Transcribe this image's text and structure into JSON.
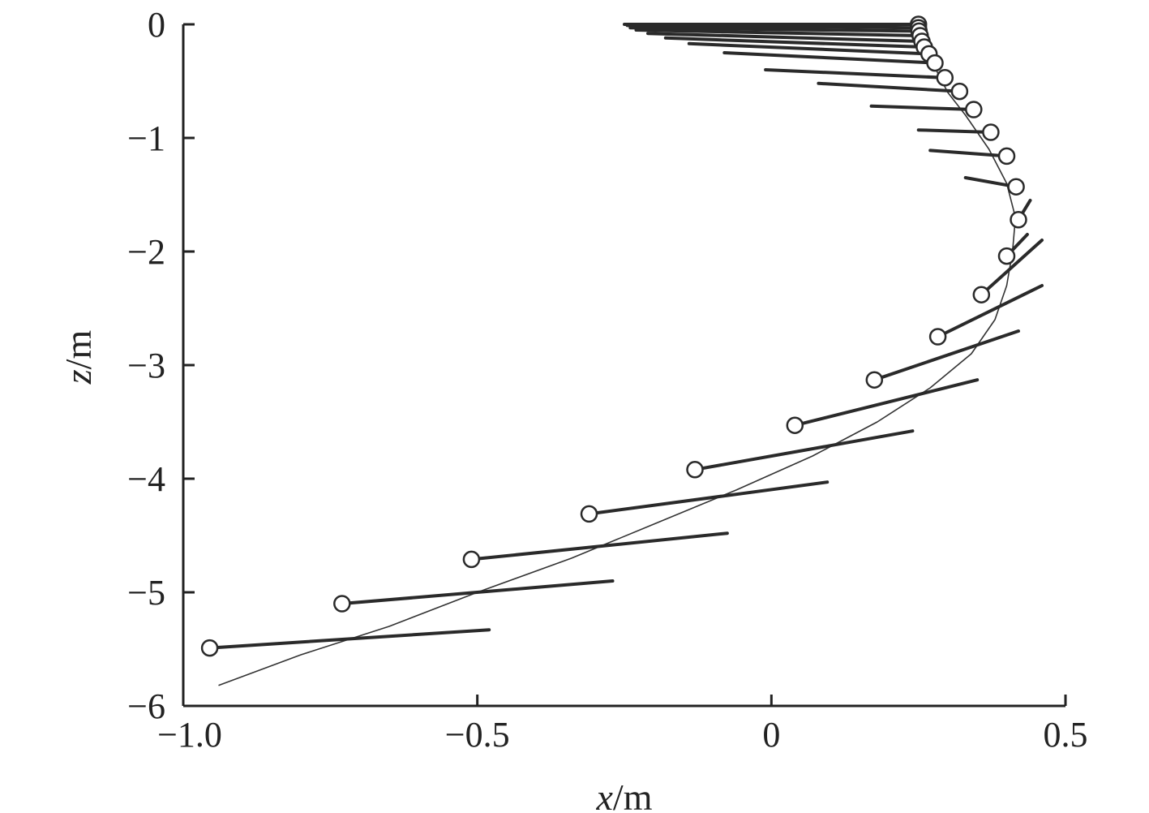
{
  "chart_data": {
    "type": "line",
    "xlabel": "x/m",
    "ylabel": "z/m",
    "xlim": [
      -1.0,
      0.5
    ],
    "ylim": [
      -6,
      0
    ],
    "x_ticks": [
      -1.0,
      -0.5,
      0,
      0.5
    ],
    "x_tick_labels": [
      "−1.0",
      "−0.5",
      "0",
      "0.5"
    ],
    "y_ticks": [
      0,
      -1,
      -2,
      -3,
      -4,
      -5,
      -6
    ],
    "y_tick_labels": [
      "0",
      "−1",
      "−2",
      "−3",
      "−4",
      "−5",
      "−6"
    ],
    "grid": false,
    "legend": "none",
    "colors": {
      "snapshot": "#2a2a2a",
      "path": "#333333",
      "marker_edge": "#2a2a2a",
      "axis": "#222222"
    },
    "trajectory": {
      "x": [
        0.25,
        0.26,
        0.28,
        0.3,
        0.33,
        0.37,
        0.4,
        0.415,
        0.41,
        0.4,
        0.38,
        0.34,
        0.27,
        0.18,
        0.07,
        -0.06,
        -0.2,
        -0.34,
        -0.5,
        -0.65,
        -0.8,
        -0.94
      ],
      "z": [
        0,
        -0.2,
        -0.4,
        -0.6,
        -0.8,
        -1.1,
        -1.4,
        -1.7,
        -2.0,
        -2.3,
        -2.6,
        -2.9,
        -3.2,
        -3.5,
        -3.8,
        -4.1,
        -4.4,
        -4.7,
        -5.0,
        -5.3,
        -5.55,
        -5.82
      ]
    },
    "series": [
      {
        "x": [
          -0.25,
          0.25
        ],
        "z": [
          0.0,
          0.0
        ],
        "marker": [
          0.25,
          0.0
        ]
      },
      {
        "x": [
          -0.245,
          0.25
        ],
        "z": [
          -0.01,
          -0.03
        ],
        "marker": [
          0.25,
          -0.03
        ]
      },
      {
        "x": [
          -0.24,
          0.251
        ],
        "z": [
          -0.03,
          -0.06
        ],
        "marker": [
          0.251,
          -0.06
        ]
      },
      {
        "x": [
          -0.23,
          0.253
        ],
        "z": [
          -0.05,
          -0.1
        ],
        "marker": [
          0.253,
          -0.1
        ]
      },
      {
        "x": [
          -0.21,
          0.256
        ],
        "z": [
          -0.08,
          -0.15
        ],
        "marker": [
          0.256,
          -0.15
        ]
      },
      {
        "x": [
          -0.18,
          0.26
        ],
        "z": [
          -0.12,
          -0.2
        ],
        "marker": [
          0.26,
          -0.2
        ]
      },
      {
        "x": [
          -0.14,
          0.268
        ],
        "z": [
          -0.17,
          -0.26
        ],
        "marker": [
          0.268,
          -0.26
        ]
      },
      {
        "x": [
          -0.08,
          0.278
        ],
        "z": [
          -0.25,
          -0.34
        ],
        "marker": [
          0.278,
          -0.34
        ]
      },
      {
        "x": [
          -0.01,
          0.295
        ],
        "z": [
          -0.4,
          -0.47
        ],
        "marker": [
          0.295,
          -0.47
        ]
      },
      {
        "x": [
          0.08,
          0.32
        ],
        "z": [
          -0.52,
          -0.59
        ],
        "marker": [
          0.32,
          -0.59
        ]
      },
      {
        "x": [
          0.17,
          0.344
        ],
        "z": [
          -0.72,
          -0.75
        ],
        "marker": [
          0.344,
          -0.75
        ]
      },
      {
        "x": [
          0.25,
          0.373
        ],
        "z": [
          -0.93,
          -0.95
        ],
        "marker": [
          0.373,
          -0.95
        ]
      },
      {
        "x": [
          0.27,
          0.4
        ],
        "z": [
          -1.11,
          -1.16
        ],
        "marker": [
          0.4,
          -1.16
        ]
      },
      {
        "x": [
          0.33,
          0.416
        ],
        "z": [
          -1.35,
          -1.43
        ],
        "marker": [
          0.416,
          -1.43
        ]
      },
      {
        "x": [
          0.44,
          0.42
        ],
        "z": [
          -1.55,
          -1.72
        ],
        "marker": [
          0.42,
          -1.72
        ]
      },
      {
        "x": [
          0.435,
          0.4
        ],
        "z": [
          -1.85,
          -2.04
        ],
        "marker": [
          0.4,
          -2.04
        ]
      },
      {
        "x": [
          0.46,
          0.357
        ],
        "z": [
          -1.9,
          -2.38
        ],
        "marker": [
          0.357,
          -2.38
        ]
      },
      {
        "x": [
          0.46,
          0.283
        ],
        "z": [
          -2.3,
          -2.75
        ],
        "marker": [
          0.283,
          -2.75
        ]
      },
      {
        "x": [
          0.42,
          0.175
        ],
        "z": [
          -2.7,
          -3.13
        ],
        "marker": [
          0.175,
          -3.13
        ]
      },
      {
        "x": [
          0.35,
          0.04
        ],
        "z": [
          -3.13,
          -3.53
        ],
        "marker": [
          0.04,
          -3.53
        ]
      },
      {
        "x": [
          0.24,
          -0.13
        ],
        "z": [
          -3.58,
          -3.92
        ],
        "marker": [
          -0.13,
          -3.92
        ]
      },
      {
        "x": [
          0.095,
          -0.31
        ],
        "z": [
          -4.03,
          -4.31
        ],
        "marker": [
          -0.31,
          -4.31
        ]
      },
      {
        "x": [
          -0.075,
          -0.51
        ],
        "z": [
          -4.48,
          -4.71
        ],
        "marker": [
          -0.51,
          -4.71
        ]
      },
      {
        "x": [
          -0.27,
          -0.73
        ],
        "z": [
          -4.9,
          -5.1
        ],
        "marker": [
          -0.73,
          -5.1
        ]
      },
      {
        "x": [
          -0.48,
          -0.955
        ],
        "z": [
          -5.33,
          -5.49
        ],
        "marker": [
          -0.955,
          -5.49
        ]
      }
    ]
  }
}
